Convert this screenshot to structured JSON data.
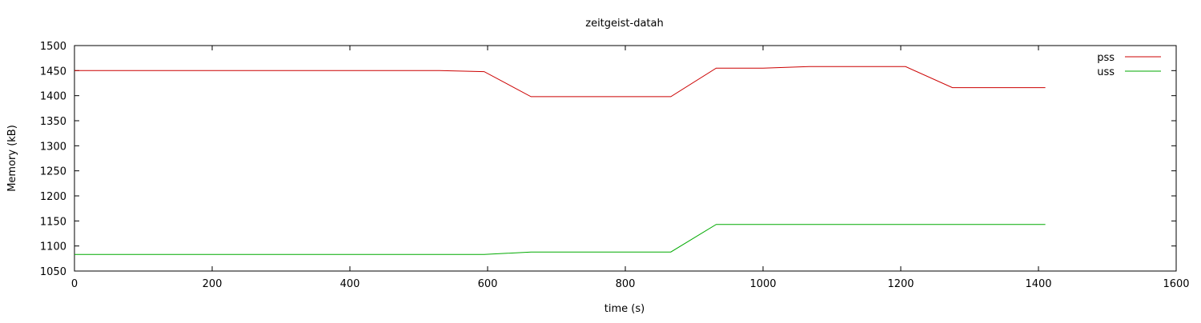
{
  "chart_data": {
    "type": "line",
    "title": "zeitgeist-datah",
    "xlabel": "time (s)",
    "ylabel": "Memory (kB)",
    "xlim": [
      0,
      1600
    ],
    "ylim": [
      1050,
      1500
    ],
    "xticks": [
      0,
      200,
      400,
      600,
      800,
      1000,
      1200,
      1400,
      1600
    ],
    "yticks": [
      1050,
      1100,
      1150,
      1200,
      1250,
      1300,
      1350,
      1400,
      1450,
      1500
    ],
    "grid": false,
    "legend_position": "top-right",
    "series": [
      {
        "name": "pss",
        "color": "#cc0000",
        "x": [
          0,
          530,
          595,
          663,
          866,
          932,
          1000,
          1067,
          1207,
          1275,
          1410
        ],
        "y": [
          1450,
          1450,
          1448,
          1398,
          1398,
          1455,
          1455,
          1458,
          1458,
          1416,
          1416
        ]
      },
      {
        "name": "uss",
        "color": "#00aa00",
        "x": [
          0,
          595,
          663,
          866,
          932,
          1410
        ],
        "y": [
          1083,
          1083,
          1088,
          1088,
          1143,
          1143
        ]
      }
    ]
  }
}
